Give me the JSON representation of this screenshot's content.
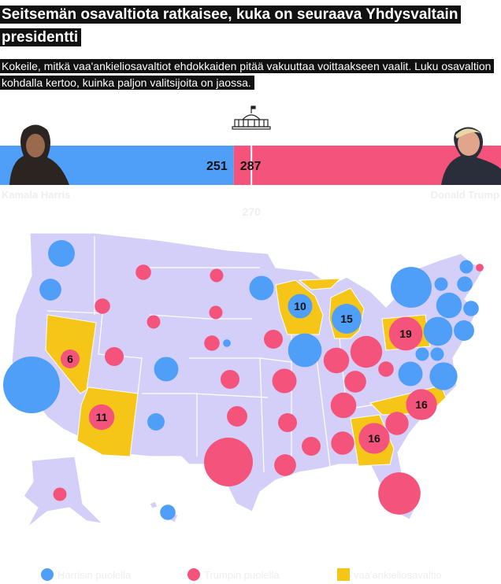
{
  "header": {
    "title": "Seitsemän osavaltiota ratkaisee, kuka on seuraava Yhdysvaltain presidentti",
    "subtitle": "Kokeile, mitkä vaa'ankieliosavaltiot ehdokkaiden pitää vakuuttaa voittaakseen vaalit. Luku osavaltion kohdalla kertoo, kuinka paljon valitsijoita on jaossa."
  },
  "tally": {
    "harris": {
      "name": "Kamala Harris",
      "votes": 251,
      "color": "#4f9ef8"
    },
    "trump": {
      "name": "Donald Trump",
      "votes": 287,
      "color": "#f4547c"
    },
    "threshold": 270
  },
  "map": {
    "land_color": "#d4cff8",
    "swing_color": "#f5c518",
    "circles": [
      {
        "votes": 12,
        "side": "harris"
      },
      {
        "votes": 8,
        "side": "harris"
      },
      {
        "votes": 54,
        "side": "harris"
      },
      {
        "votes": 5,
        "side": "harris"
      },
      {
        "votes": 10,
        "side": "harris"
      },
      {
        "votes": 10,
        "side": "harris"
      },
      {
        "votes": 19,
        "side": "harris"
      },
      {
        "votes": 10,
        "side": "harris",
        "swing": true
      },
      {
        "votes": 15,
        "side": "harris",
        "swing": true
      },
      {
        "votes": 1,
        "side": "harris"
      },
      {
        "votes": 4,
        "side": "harris"
      },
      {
        "votes": 28,
        "side": "harris"
      },
      {
        "votes": 3,
        "side": "harris"
      },
      {
        "votes": 4,
        "side": "harris"
      },
      {
        "votes": 3,
        "side": "harris"
      },
      {
        "votes": 11,
        "side": "harris"
      },
      {
        "votes": 4,
        "side": "harris"
      },
      {
        "votes": 7,
        "side": "harris"
      },
      {
        "votes": 14,
        "side": "harris"
      },
      {
        "votes": 3,
        "side": "harris"
      },
      {
        "votes": 10,
        "side": "harris"
      },
      {
        "votes": 3,
        "side": "harris"
      },
      {
        "votes": 13,
        "side": "harris"
      },
      {
        "votes": 4,
        "side": "trump"
      },
      {
        "votes": 4,
        "side": "trump"
      },
      {
        "votes": 3,
        "side": "trump"
      },
      {
        "votes": 3,
        "side": "trump"
      },
      {
        "votes": 3,
        "side": "trump"
      },
      {
        "votes": 6,
        "side": "trump"
      },
      {
        "votes": 6,
        "side": "trump",
        "swing": true
      },
      {
        "votes": 11,
        "side": "trump",
        "swing": true
      },
      {
        "votes": 4,
        "side": "trump"
      },
      {
        "votes": 6,
        "side": "trump"
      },
      {
        "votes": 7,
        "side": "trump"
      },
      {
        "votes": 40,
        "side": "trump"
      },
      {
        "votes": 6,
        "side": "trump"
      },
      {
        "votes": 10,
        "side": "trump"
      },
      {
        "votes": 6,
        "side": "trump"
      },
      {
        "votes": 8,
        "side": "trump"
      },
      {
        "votes": 6,
        "side": "trump"
      },
      {
        "votes": 9,
        "side": "trump"
      },
      {
        "votes": 11,
        "side": "trump"
      },
      {
        "votes": 8,
        "side": "trump"
      },
      {
        "votes": 11,
        "side": "trump"
      },
      {
        "votes": 17,
        "side": "trump"
      },
      {
        "votes": 4,
        "side": "trump"
      },
      {
        "votes": 19,
        "side": "trump",
        "swing": true
      },
      {
        "votes": 16,
        "side": "trump",
        "swing": true
      },
      {
        "votes": 9,
        "side": "trump"
      },
      {
        "votes": 16,
        "side": "trump",
        "swing": true
      },
      {
        "votes": 30,
        "side": "trump"
      },
      {
        "votes": 3,
        "side": "trump"
      },
      {
        "votes": 1,
        "side": "trump"
      }
    ]
  },
  "legend": [
    {
      "label": "Harrisin puolella",
      "color": "#4f9ef8",
      "shape": "circle"
    },
    {
      "label": "Trumpin puolella",
      "color": "#f4547c",
      "shape": "circle"
    },
    {
      "label": "vaa'ankieliosavaltio",
      "color": "#f5c518",
      "shape": "square"
    }
  ]
}
